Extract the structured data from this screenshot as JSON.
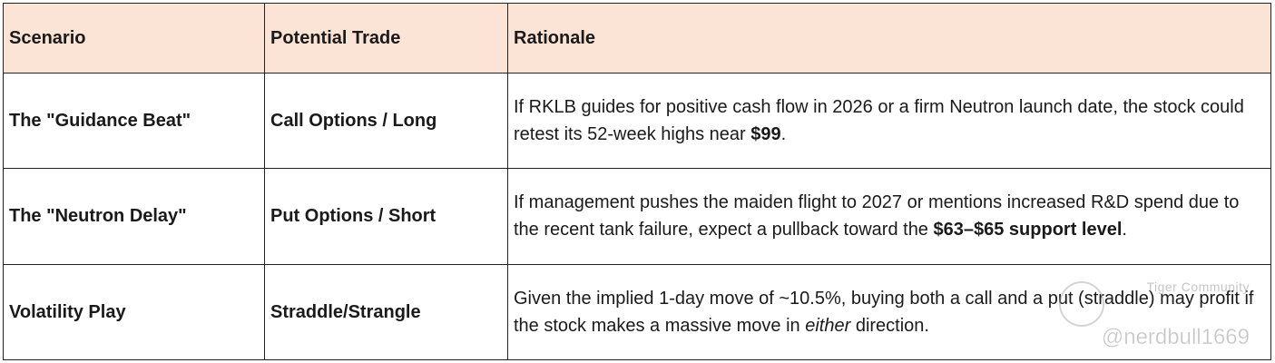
{
  "table": {
    "headers": [
      "Scenario",
      "Potential Trade",
      "Rationale"
    ],
    "rows": [
      {
        "scenario": "The \"Guidance Beat\"",
        "trade": "Call Options / Long",
        "rationale": {
          "before": "If RKLB guides for positive cash flow in 2026 or a firm Neutron launch date, the stock could retest its 52-week highs near ",
          "bold": "$99",
          "after": "."
        }
      },
      {
        "scenario": "The \"Neutron Delay\"",
        "trade": "Put Options / Short",
        "rationale": {
          "before": "If management pushes the maiden flight to 2027 or mentions increased R&D spend due to the recent tank failure, expect a pullback toward the ",
          "bold": "$63–$65 support level",
          "after": "."
        }
      },
      {
        "scenario": "Volatility Play",
        "trade": "Straddle/Strangle",
        "rationale": {
          "before": "Given the implied 1-day move of ~10.5%, buying both a call and a put (straddle) may profit if the stock makes a massive move in ",
          "italic": "either",
          "after": " direction."
        }
      }
    ]
  },
  "watermark": {
    "brand": "Tiger Community",
    "handle": "@nerdbull1669"
  }
}
